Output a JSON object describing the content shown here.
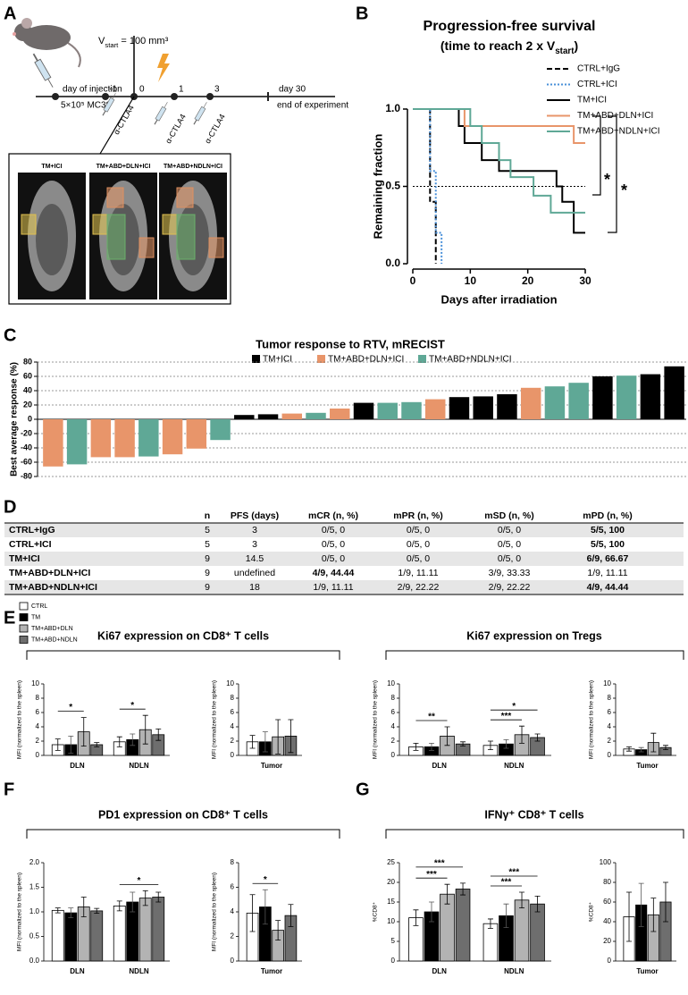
{
  "panel_labels": [
    "A",
    "B",
    "C",
    "D",
    "E",
    "F",
    "G"
  ],
  "diagram": {
    "vstart": [
      "V",
      "start",
      " = 100 mm³"
    ],
    "injection": "day of injection",
    "cells": "5×10⁵ MC38",
    "days": [
      "-1",
      "0",
      "1",
      "3",
      "day 30"
    ],
    "end": "end of experiment",
    "treatment": [
      "α-CTLA4",
      "α-CTLA4",
      "α-CTLA4"
    ],
    "images": [
      "TM+ICI",
      "TM+ABD+DLN+ICI",
      "TM+ABD+NDLN+ICI"
    ]
  },
  "group_legend": [
    {
      "name": "CTRL",
      "color": "#ffffff"
    },
    {
      "name": "TM",
      "color": "#000000"
    },
    {
      "name": "TM+ABD+DLN",
      "color": "#b3b3b3"
    },
    {
      "name": "TM+ABD+NDLN",
      "color": "#6e6e6e"
    }
  ],
  "chart_data": [
    {
      "type": "step",
      "title": "Progression-free survival",
      "subtitle": [
        "(time to reach 2 x V",
        "start",
        ")"
      ],
      "xlabel": "Days after irradiation",
      "ylabel": "Remaining fraction",
      "xlim": [
        0,
        30
      ],
      "xticks": [
        0,
        10,
        20,
        30
      ],
      "ylim": [
        0,
        1
      ],
      "yticks": [
        {
          "value": 0,
          "label": "0.0"
        },
        {
          "value": 0.5,
          "label": "0.5"
        },
        {
          "value": 1,
          "label": "1.0"
        }
      ],
      "reference_line": 0.5,
      "series": [
        {
          "name": "CTRL+IgG",
          "color": "#000000",
          "dash": "dashed",
          "x": [
            0,
            3,
            4
          ],
          "values": [
            1,
            0.4,
            0
          ]
        },
        {
          "name": "CTRL+ICI",
          "color": "#4a90d9",
          "dash": "dotted",
          "x": [
            0,
            3,
            4,
            5
          ],
          "values": [
            1,
            0.6,
            0.2,
            0
          ]
        },
        {
          "name": "TM+ICI",
          "color": "#000000",
          "dash": "solid",
          "x": [
            0,
            8,
            9,
            12,
            15,
            25,
            26,
            28,
            30
          ],
          "values": [
            1,
            0.89,
            0.78,
            0.67,
            0.6,
            0.5,
            0.4,
            0.2,
            0.2
          ]
        },
        {
          "name": "TM+ABD+DLN+ICI",
          "color": "#e8956a",
          "dash": "solid",
          "x": [
            0,
            9,
            28,
            30
          ],
          "values": [
            1,
            0.89,
            0.78,
            0.78
          ]
        },
        {
          "name": "TM+ABD+NDLN+ICI",
          "color": "#5fa896",
          "dash": "solid",
          "x": [
            0,
            10,
            12,
            15,
            17,
            21,
            24,
            30
          ],
          "values": [
            1,
            0.89,
            0.78,
            0.67,
            0.56,
            0.44,
            0.33,
            0.33
          ]
        }
      ],
      "annotations": [
        "*",
        "*"
      ]
    },
    {
      "type": "bar",
      "title": "Tumor response to RTV, mRECIST",
      "ylabel": "Best average response (%)",
      "ylim": [
        -80,
        80
      ],
      "yticks": [
        -80,
        -60,
        -40,
        -20,
        0,
        20,
        40,
        60,
        80
      ],
      "grid": true,
      "values": [
        -66,
        -63,
        -53,
        -53,
        -52,
        -49,
        -41,
        -29,
        6,
        7,
        8,
        9,
        15,
        23,
        23,
        24,
        28,
        31,
        32,
        35,
        44,
        46,
        51,
        60,
        61,
        63,
        74
      ],
      "colors": [
        "#e8956a",
        "#5fa896",
        "#e8956a",
        "#e8956a",
        "#5fa896",
        "#e8956a",
        "#e8956a",
        "#5fa896",
        "#000000",
        "#000000",
        "#e8956a",
        "#5fa896",
        "#e8956a",
        "#000000",
        "#5fa896",
        "#5fa896",
        "#e8956a",
        "#000000",
        "#000000",
        "#000000",
        "#e8956a",
        "#5fa896",
        "#5fa896",
        "#000000",
        "#5fa896",
        "#000000",
        "#000000"
      ],
      "legend": [
        {
          "name": "TM+ICI",
          "color": "#000000"
        },
        {
          "name": "TM+ABD+DLN+ICI",
          "color": "#e8956a"
        },
        {
          "name": "TM+ABD+NDLN+ICI",
          "color": "#5fa896"
        }
      ]
    },
    {
      "type": "grouped_bar",
      "title": "Ki67 expression on CD8⁺ T cells",
      "ylabel": "MFI (normalized to the spleen)",
      "categories": [
        "DLN",
        "NDLN"
      ],
      "ylim": [
        0,
        10
      ],
      "yticks": [
        0,
        2,
        4,
        6,
        8,
        10
      ],
      "series": [
        {
          "color": "#ffffff",
          "values": [
            1.5,
            1.9
          ],
          "errors": [
            0.8,
            0.7
          ]
        },
        {
          "color": "#000000",
          "values": [
            1.5,
            2.2
          ],
          "errors": [
            1.2,
            0.8
          ]
        },
        {
          "color": "#b3b3b3",
          "values": [
            3.3,
            3.6
          ],
          "errors": [
            2.0,
            2.0
          ]
        },
        {
          "color": "#6e6e6e",
          "values": [
            1.5,
            2.9
          ],
          "errors": [
            0.3,
            0.8
          ]
        }
      ],
      "significance": [
        {
          "category": 0,
          "from": 0,
          "to": 2,
          "label": "*"
        },
        {
          "category": 1,
          "from": 0,
          "to": 2,
          "label": "*"
        }
      ]
    },
    {
      "type": "grouped_bar",
      "ylabel": "MFI (normalized to the spleen)",
      "categories": [
        "Tumor"
      ],
      "ylim": [
        0,
        10
      ],
      "yticks": [
        0,
        2,
        4,
        6,
        8,
        10
      ],
      "series": [
        {
          "color": "#ffffff",
          "values": [
            1.9
          ],
          "errors": [
            0.9
          ]
        },
        {
          "color": "#000000",
          "values": [
            1.9
          ],
          "errors": [
            1.4
          ]
        },
        {
          "color": "#b3b3b3",
          "values": [
            2.6
          ],
          "errors": [
            2.4
          ]
        },
        {
          "color": "#6e6e6e",
          "values": [
            2.7
          ],
          "errors": [
            2.3
          ]
        }
      ]
    },
    {
      "type": "grouped_bar",
      "title": "Ki67 expression on Tregs",
      "ylabel": "MFI (normalized to the spleen)",
      "categories": [
        "DLN",
        "NDLN"
      ],
      "ylim": [
        0,
        10
      ],
      "yticks": [
        0,
        2,
        4,
        6,
        8,
        10
      ],
      "series": [
        {
          "color": "#ffffff",
          "values": [
            1.2,
            1.4
          ],
          "errors": [
            0.5,
            0.6
          ]
        },
        {
          "color": "#000000",
          "values": [
            1.2,
            1.6
          ],
          "errors": [
            0.5,
            0.6
          ]
        },
        {
          "color": "#b3b3b3",
          "values": [
            2.7,
            2.9
          ],
          "errors": [
            1.3,
            1.2
          ]
        },
        {
          "color": "#6e6e6e",
          "values": [
            1.6,
            2.5
          ],
          "errors": [
            0.3,
            0.5
          ]
        }
      ],
      "significance": [
        {
          "category": 0,
          "from": 0,
          "to": 2,
          "label": "**"
        },
        {
          "category": 1,
          "from": 0,
          "to": 2,
          "label": "***"
        },
        {
          "category": 1,
          "from": 0,
          "to": 3,
          "label": "*"
        }
      ]
    },
    {
      "type": "grouped_bar",
      "ylabel": "MFI (normalized to the spleen)",
      "categories": [
        "Tumor"
      ],
      "ylim": [
        0,
        10
      ],
      "yticks": [
        0,
        2,
        4,
        6,
        8,
        10
      ],
      "series": [
        {
          "color": "#ffffff",
          "values": [
            0.9
          ],
          "errors": [
            0.3
          ]
        },
        {
          "color": "#000000",
          "values": [
            0.8
          ],
          "errors": [
            0.3
          ]
        },
        {
          "color": "#b3b3b3",
          "values": [
            1.8
          ],
          "errors": [
            1.3
          ]
        },
        {
          "color": "#6e6e6e",
          "values": [
            1.1
          ],
          "errors": [
            0.3
          ]
        }
      ]
    },
    {
      "type": "grouped_bar",
      "title": "PD1 expression on CD8⁺ T cells",
      "ylabel": "MFI (normalized to the spleen)",
      "categories": [
        "DLN",
        "NDLN"
      ],
      "ylim": [
        0,
        2
      ],
      "yticks": [
        {
          "value": 0,
          "label": "0.0"
        },
        {
          "value": 0.5,
          "label": "0.5"
        },
        {
          "value": 1,
          "label": "1.0"
        },
        {
          "value": 1.5,
          "label": "1.5"
        },
        {
          "value": 2,
          "label": "2.0"
        }
      ],
      "series": [
        {
          "color": "#ffffff",
          "values": [
            1.03,
            1.12
          ],
          "errors": [
            0.05,
            0.1
          ]
        },
        {
          "color": "#000000",
          "values": [
            0.98,
            1.2
          ],
          "errors": [
            0.1,
            0.2
          ]
        },
        {
          "color": "#b3b3b3",
          "values": [
            1.1,
            1.28
          ],
          "errors": [
            0.2,
            0.15
          ]
        },
        {
          "color": "#6e6e6e",
          "values": [
            1.02,
            1.3
          ],
          "errors": [
            0.05,
            0.1
          ]
        }
      ],
      "significance": [
        {
          "category": 1,
          "from": 0,
          "to": 3,
          "label": "*"
        }
      ]
    },
    {
      "type": "grouped_bar",
      "ylabel": "MFI (normalized to the spleen)",
      "categories": [
        "Tumor"
      ],
      "ylim": [
        0,
        8
      ],
      "yticks": [
        0,
        2,
        4,
        6,
        8
      ],
      "series": [
        {
          "color": "#ffffff",
          "values": [
            3.9
          ],
          "errors": [
            1.5
          ]
        },
        {
          "color": "#000000",
          "values": [
            4.4
          ],
          "errors": [
            1.4
          ]
        },
        {
          "color": "#b3b3b3",
          "values": [
            2.5
          ],
          "errors": [
            0.8
          ]
        },
        {
          "color": "#6e6e6e",
          "values": [
            3.7
          ],
          "errors": [
            0.9
          ]
        }
      ],
      "significance": [
        {
          "category": 0,
          "from": 0,
          "to": 2,
          "label": "*"
        }
      ]
    },
    {
      "type": "grouped_bar",
      "title": "IFNγ⁺ CD8⁺ T cells",
      "ylabel": "%CD8⁺",
      "categories": [
        "DLN",
        "NDLN"
      ],
      "ylim": [
        0,
        25
      ],
      "yticks": [
        0,
        5,
        10,
        15,
        20,
        25
      ],
      "series": [
        {
          "color": "#ffffff",
          "values": [
            11,
            9.5
          ],
          "errors": [
            2,
            1.2
          ]
        },
        {
          "color": "#000000",
          "values": [
            12.5,
            11.5
          ],
          "errors": [
            2.5,
            3
          ]
        },
        {
          "color": "#b3b3b3",
          "values": [
            17,
            15.5
          ],
          "errors": [
            2.5,
            2
          ]
        },
        {
          "color": "#6e6e6e",
          "values": [
            18.3,
            14.5
          ],
          "errors": [
            1.5,
            2
          ]
        }
      ],
      "significance": [
        {
          "category": 0,
          "from": 0,
          "to": 2,
          "label": "***"
        },
        {
          "category": 0,
          "from": 0,
          "to": 3,
          "label": "***"
        },
        {
          "category": 1,
          "from": 0,
          "to": 2,
          "label": "***"
        },
        {
          "category": 1,
          "from": 0,
          "to": 3,
          "label": "***"
        }
      ]
    },
    {
      "type": "grouped_bar",
      "ylabel": "%CD8⁺",
      "categories": [
        "Tumor"
      ],
      "ylim": [
        0,
        100
      ],
      "yticks": [
        0,
        20,
        40,
        60,
        80,
        100
      ],
      "series": [
        {
          "color": "#ffffff",
          "values": [
            45
          ],
          "errors": [
            25
          ]
        },
        {
          "color": "#000000",
          "values": [
            57
          ],
          "errors": [
            22
          ]
        },
        {
          "color": "#b3b3b3",
          "values": [
            47
          ],
          "errors": [
            17
          ]
        },
        {
          "color": "#6e6e6e",
          "values": [
            60
          ],
          "errors": [
            20
          ]
        }
      ]
    }
  ],
  "table": {
    "columns": [
      "n",
      "PFS (days)",
      "mCR (n, %)",
      "mPR (n, %)",
      "mSD (n, %)",
      "mPD (n, %)"
    ],
    "rows": [
      {
        "label": "CTRL+IgG",
        "cells": [
          5,
          3,
          "0/5, 0",
          "0/5, 0",
          "0/5, 0",
          "5/5, 100"
        ]
      },
      {
        "label": "CTRL+ICI",
        "cells": [
          5,
          3,
          "0/5, 0",
          "0/5, 0",
          "0/5, 0",
          "5/5, 100"
        ]
      },
      {
        "label": "TM+ICI",
        "cells": [
          9,
          14.5,
          "0/5, 0",
          "0/5, 0",
          "0/5, 0",
          "6/9, 66.67"
        ]
      },
      {
        "label": "TM+ABD+DLN+ICI",
        "cells": [
          9,
          "undefined",
          "4/9, 44.44",
          "1/9, 11.11",
          "3/9, 33.33",
          "1/9, 11.11"
        ]
      },
      {
        "label": "TM+ABD+NDLN+ICI",
        "cells": [
          9,
          18,
          "1/9, 11.11",
          "2/9, 22.22",
          "2/9, 22.22",
          "4/9, 44.44"
        ]
      }
    ],
    "bold": [
      [
        0,
        5
      ],
      [
        1,
        5
      ],
      [
        2,
        5
      ],
      [
        3,
        2
      ],
      [
        4,
        5
      ]
    ]
  }
}
